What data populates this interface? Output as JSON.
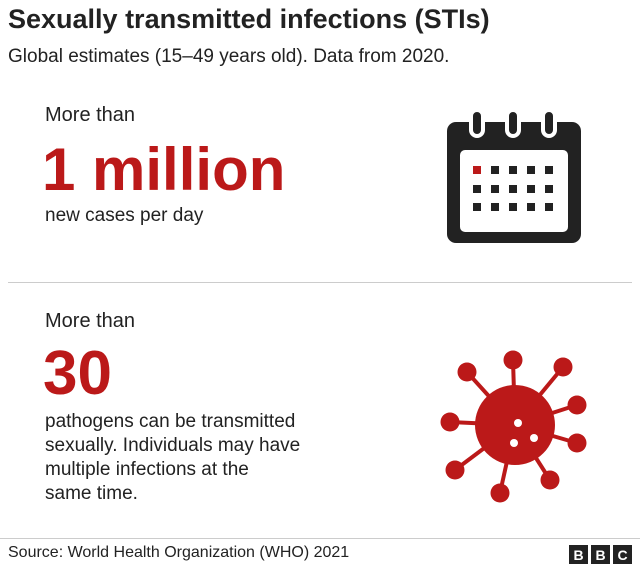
{
  "title": "Sexually transmitted infections (STIs)",
  "subtitle": "Global estimates (15–49 years old). Data from 2020.",
  "stats": [
    {
      "lead": "More than",
      "value": "1 million",
      "description": "new cases per day",
      "icon": "calendar-icon"
    },
    {
      "lead": "More than",
      "value": "30",
      "description_lines": [
        "pathogens can be transmitted",
        "sexually. Individuals may have",
        "multiple infections at the",
        "same time."
      ],
      "icon": "virus-icon"
    }
  ],
  "source": "Source: World Health Organization (WHO) 2021",
  "logo": [
    "B",
    "B",
    "C"
  ],
  "colors": {
    "accent": "#bb1919",
    "text": "#222222"
  }
}
